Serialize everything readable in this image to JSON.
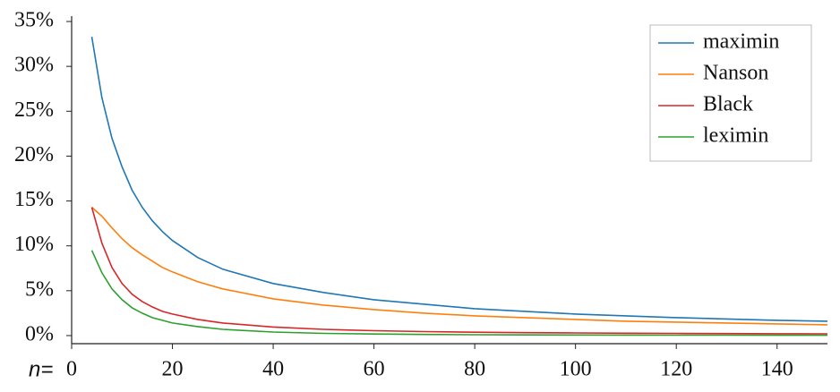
{
  "chart_data": {
    "type": "line",
    "xlabel": "n=",
    "x": [
      4,
      6,
      8,
      10,
      12,
      14,
      16,
      18,
      20,
      25,
      30,
      40,
      50,
      60,
      70,
      80,
      90,
      100,
      110,
      120,
      130,
      140,
      150
    ],
    "series": [
      {
        "name": "maximin",
        "color": "#1f77b4",
        "values": [
          33.3,
          26.5,
          22.0,
          18.8,
          16.2,
          14.3,
          12.8,
          11.6,
          10.6,
          8.7,
          7.4,
          5.8,
          4.8,
          4.0,
          3.5,
          3.0,
          2.7,
          2.4,
          2.2,
          2.0,
          1.85,
          1.7,
          1.6
        ]
      },
      {
        "name": "Nanson",
        "color": "#ff7f0e",
        "values": [
          14.3,
          13.3,
          12.0,
          10.8,
          9.8,
          9.0,
          8.3,
          7.6,
          7.1,
          6.0,
          5.2,
          4.1,
          3.4,
          2.9,
          2.5,
          2.2,
          2.0,
          1.8,
          1.6,
          1.5,
          1.4,
          1.3,
          1.2
        ]
      },
      {
        "name": "Black",
        "color": "#d62728",
        "values": [
          14.3,
          10.3,
          7.6,
          5.8,
          4.6,
          3.8,
          3.2,
          2.7,
          2.4,
          1.8,
          1.4,
          0.95,
          0.7,
          0.55,
          0.45,
          0.38,
          0.33,
          0.3,
          0.27,
          0.25,
          0.23,
          0.21,
          0.2
        ]
      },
      {
        "name": "leximin",
        "color": "#2ca02c",
        "values": [
          9.5,
          7.0,
          5.2,
          4.0,
          3.1,
          2.5,
          2.0,
          1.7,
          1.4,
          1.0,
          0.7,
          0.4,
          0.25,
          0.18,
          0.13,
          0.1,
          0.08,
          0.07,
          0.06,
          0.05,
          0.05,
          0.04,
          0.04
        ]
      }
    ],
    "xlim": [
      0,
      150
    ],
    "xticks": [
      0,
      20,
      40,
      60,
      80,
      100,
      120,
      140
    ],
    "ylim": [
      -0.9,
      35.6
    ],
    "yticks": [
      {
        "value": 0,
        "label": "0%"
      },
      {
        "value": 5,
        "label": "5%"
      },
      {
        "value": 10,
        "label": "10%"
      },
      {
        "value": 15,
        "label": "15%"
      },
      {
        "value": 20,
        "label": "20%"
      },
      {
        "value": 25,
        "label": "25%"
      },
      {
        "value": 30,
        "label": "30%"
      },
      {
        "value": 35,
        "label": "35%"
      }
    ],
    "legend": "upper right"
  }
}
